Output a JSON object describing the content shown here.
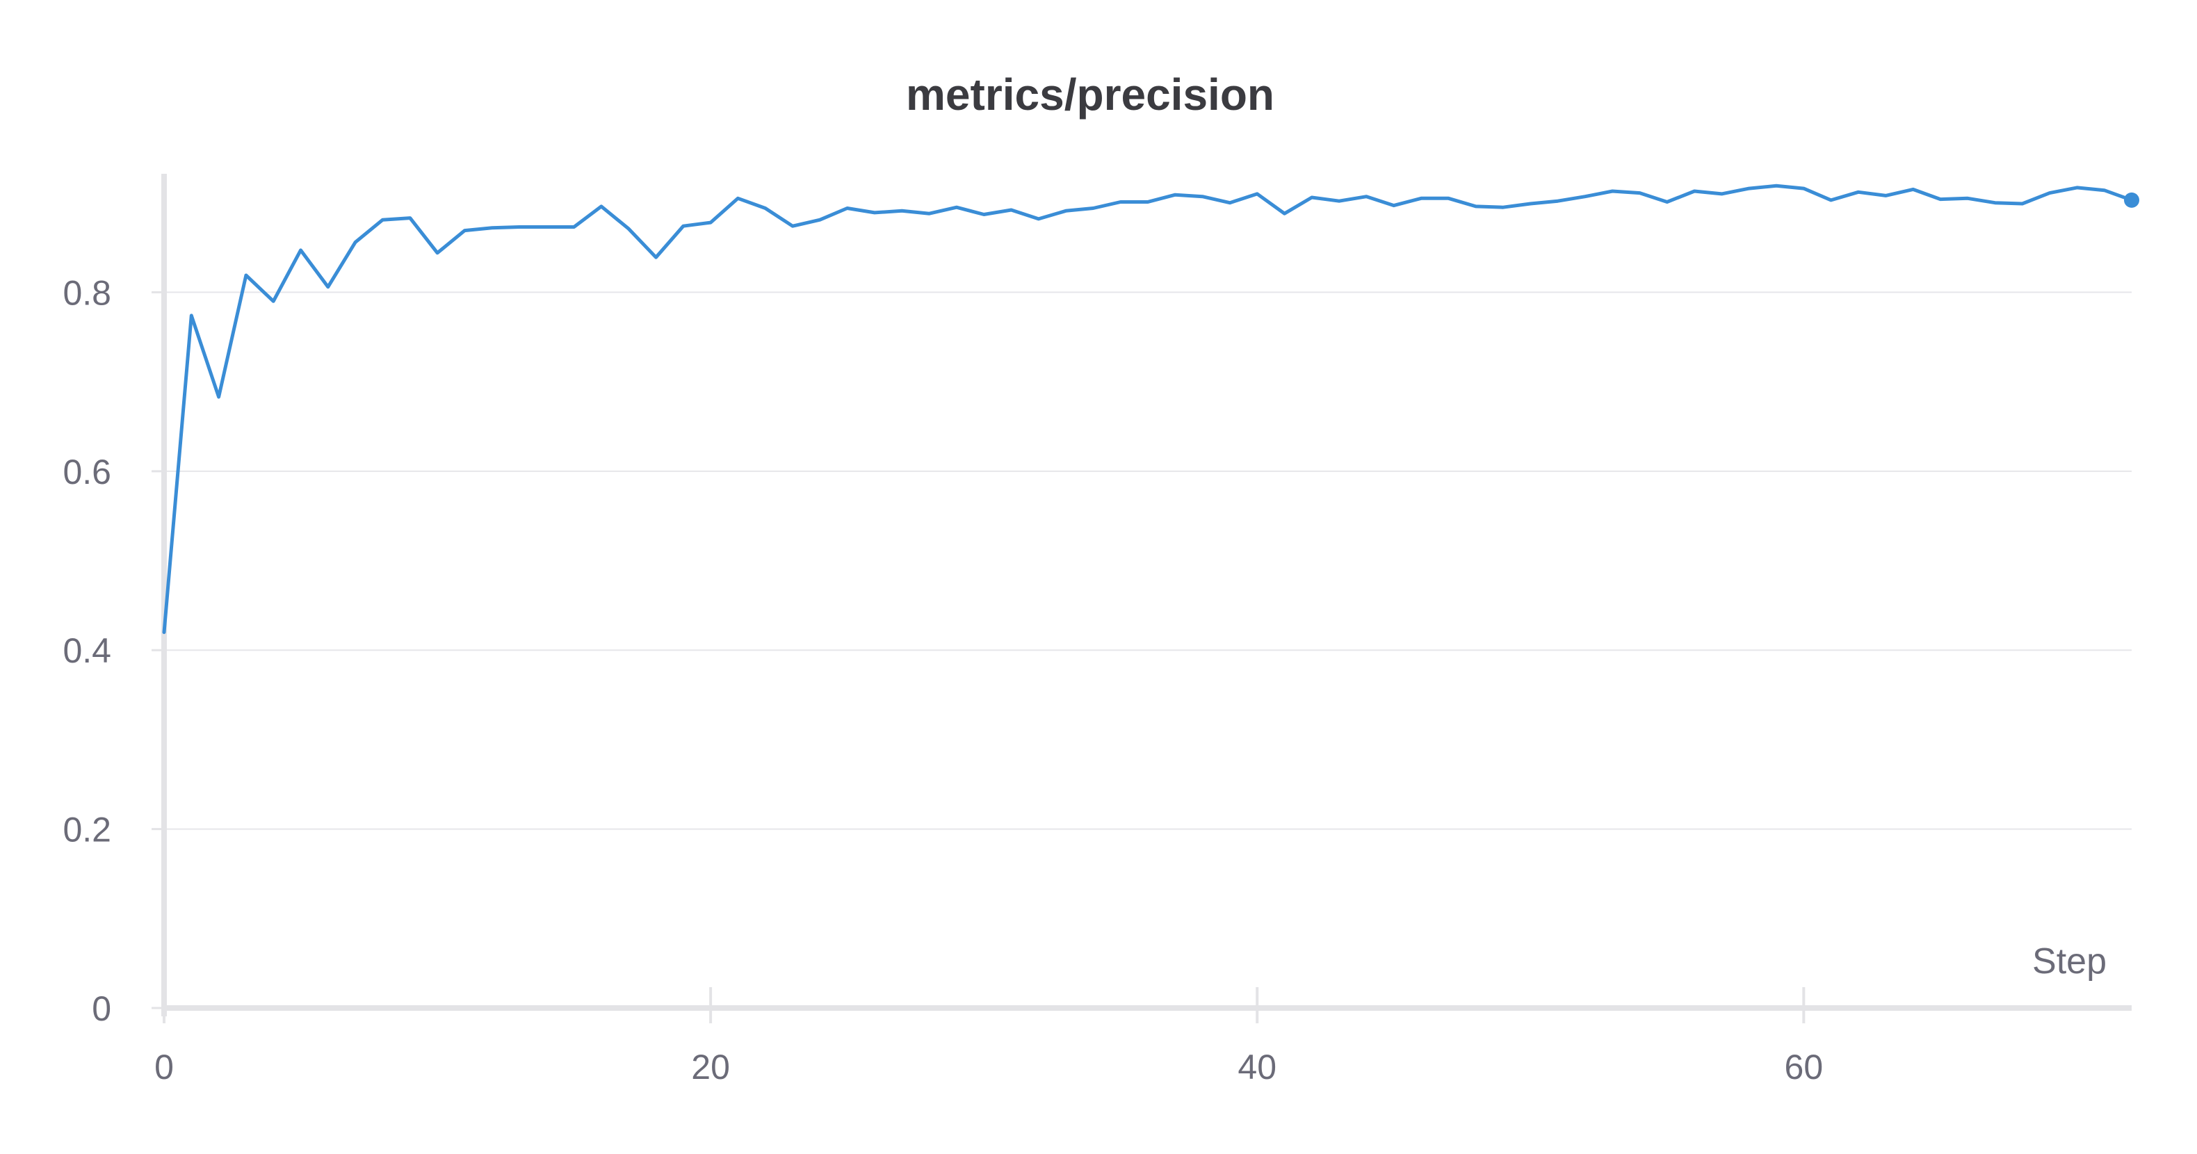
{
  "chart_data": {
    "type": "line",
    "title": "metrics/precision",
    "xlabel": "Step",
    "ylabel": "",
    "xlim": [
      0,
      72
    ],
    "ylim": [
      0,
      0.92
    ],
    "x_ticks": [
      0,
      20,
      40,
      60
    ],
    "y_ticks": [
      0,
      0.2,
      0.4,
      0.6,
      0.8
    ],
    "x_tick_labels": [
      "0",
      "20",
      "40",
      "60"
    ],
    "y_tick_labels": [
      "0",
      "0.2",
      "0.4",
      "0.6",
      "0.8"
    ],
    "grid": "horizontal",
    "line_color": "#3a8dd6",
    "series": [
      {
        "x": [
          0,
          1,
          2,
          3,
          4,
          5,
          6,
          7,
          8,
          9,
          10,
          11,
          12,
          13,
          14,
          15,
          16,
          17,
          18,
          19,
          20,
          21,
          22,
          23,
          24,
          25,
          26,
          27,
          28,
          29,
          30,
          31,
          32,
          33,
          34,
          35,
          36,
          37,
          38,
          39,
          40,
          41,
          42,
          43,
          44,
          45,
          46,
          47,
          48,
          49,
          50,
          51,
          52,
          53,
          54,
          55,
          56,
          57,
          58,
          59,
          60,
          61,
          62,
          63,
          64,
          65,
          66,
          67,
          68,
          69,
          70,
          71,
          72
        ],
        "values": [
          0.42,
          0.774,
          0.683,
          0.819,
          0.79,
          0.847,
          0.806,
          0.856,
          0.881,
          0.883,
          0.844,
          0.869,
          0.872,
          0.873,
          0.873,
          0.873,
          0.896,
          0.871,
          0.839,
          0.874,
          0.878,
          0.905,
          0.894,
          0.874,
          0.881,
          0.894,
          0.889,
          0.891,
          0.888,
          0.895,
          0.887,
          0.892,
          0.882,
          0.891,
          0.894,
          0.901,
          0.901,
          0.909,
          0.907,
          0.9,
          0.91,
          0.888,
          0.906,
          0.902,
          0.907,
          0.897,
          0.905,
          0.905,
          0.896,
          0.895,
          0.899,
          0.902,
          0.907,
          0.913,
          0.911,
          0.901,
          0.913,
          0.91,
          0.916,
          0.919,
          0.916,
          0.903,
          0.912,
          0.908,
          0.915,
          0.904,
          0.905,
          0.9,
          0.899,
          0.911,
          0.917,
          0.914,
          0.903
        ]
      }
    ]
  }
}
